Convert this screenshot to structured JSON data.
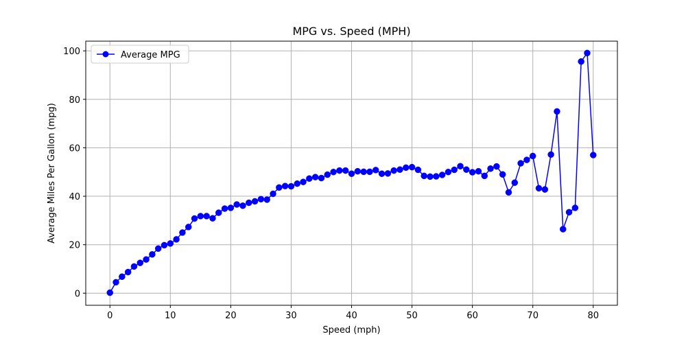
{
  "chart_data": {
    "type": "line",
    "title": "MPG vs. Speed (MPH)",
    "xlabel": "Speed (mph)",
    "ylabel": "Average Miles Per Gallon (mpg)",
    "xlim": [
      -4,
      84
    ],
    "ylim": [
      -5,
      104
    ],
    "xticks": [
      0,
      10,
      20,
      30,
      40,
      50,
      60,
      70,
      80
    ],
    "yticks": [
      0,
      20,
      40,
      60,
      80,
      100
    ],
    "grid": true,
    "legend_position": "upper-left",
    "series": [
      {
        "name": "Average MPG",
        "color": "#0000ff",
        "marker": "circle",
        "x": [
          0,
          1,
          2,
          3,
          4,
          5,
          6,
          7,
          8,
          9,
          10,
          11,
          12,
          13,
          14,
          15,
          16,
          17,
          18,
          19,
          20,
          21,
          22,
          23,
          24,
          25,
          26,
          27,
          28,
          29,
          30,
          31,
          32,
          33,
          34,
          35,
          36,
          37,
          38,
          39,
          40,
          41,
          42,
          43,
          44,
          45,
          46,
          47,
          48,
          49,
          50,
          51,
          52,
          53,
          54,
          55,
          56,
          57,
          58,
          59,
          60,
          61,
          62,
          63,
          64,
          65,
          66,
          67,
          68,
          69,
          70,
          71,
          72,
          73,
          74,
          75,
          76,
          77,
          78,
          79,
          80
        ],
        "y": [
          0.2,
          4.5,
          6.8,
          8.7,
          11.0,
          12.5,
          13.9,
          16.0,
          18.4,
          19.8,
          20.5,
          22.2,
          25.0,
          27.3,
          30.8,
          31.8,
          31.8,
          30.9,
          33.2,
          34.9,
          35.2,
          36.6,
          36.1,
          37.3,
          37.9,
          38.8,
          38.6,
          41.0,
          43.6,
          44.2,
          44.1,
          45.2,
          45.9,
          47.3,
          47.9,
          47.5,
          48.9,
          50.0,
          50.6,
          50.6,
          49.3,
          50.3,
          50.1,
          50.1,
          50.8,
          49.3,
          49.4,
          50.6,
          51.0,
          51.8,
          52.0,
          50.9,
          48.4,
          48.1,
          48.2,
          48.8,
          50.0,
          50.9,
          52.4,
          51.0,
          49.9,
          50.3,
          48.4,
          51.4,
          52.3,
          49.0,
          41.6,
          45.6,
          53.6,
          55.0,
          56.6,
          43.3,
          42.8,
          57.2,
          75.0,
          26.4,
          33.4,
          35.2,
          95.6,
          99.1,
          57.0
        ]
      }
    ]
  }
}
